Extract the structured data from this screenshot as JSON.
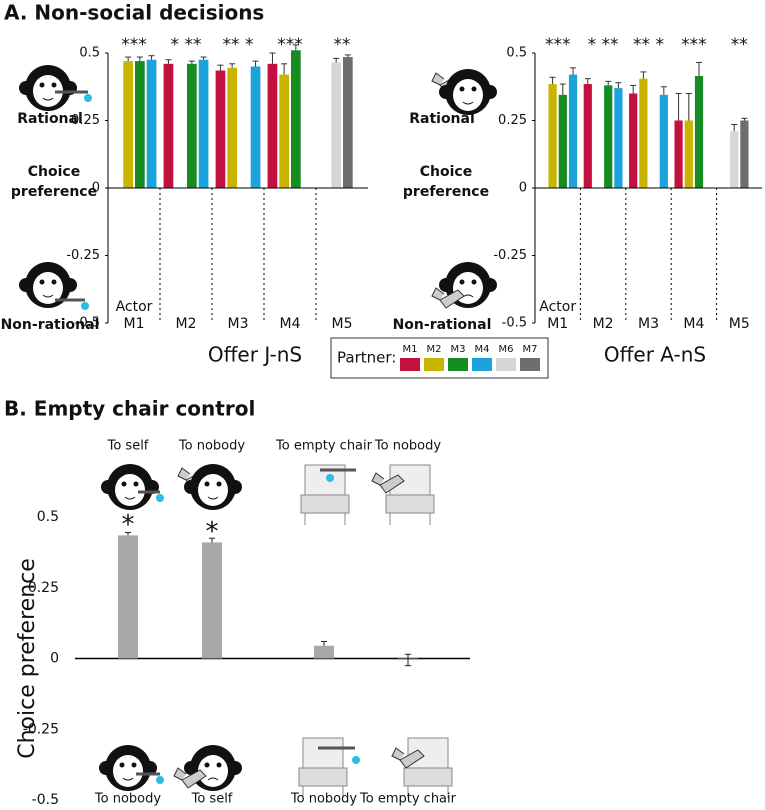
{
  "chart_data": [
    {
      "type": "grouped-bar",
      "panel_title": "A. Non-social decisions",
      "y_label": "Choice preference",
      "top_icon_label": "Rational",
      "bottom_icon_label": "Non-rational",
      "x_label": "Offer J-nS",
      "actor_label": "Actor",
      "categories": [
        "M1",
        "M2",
        "M3",
        "M4",
        "M5"
      ],
      "annotations": [
        "***",
        "* **",
        "** *",
        "***",
        "**"
      ],
      "legend_title": "Partner:",
      "ylim": [
        -0.5,
        0.5
      ],
      "yticks": [
        -0.5,
        -0.25,
        0,
        0.25,
        0.5
      ],
      "series": [
        {
          "name": "M1",
          "color": "#c2113f",
          "values": [
            null,
            0.46,
            0.435,
            0.46,
            null
          ],
          "errors": [
            null,
            0.015,
            0.02,
            0.04,
            null
          ]
        },
        {
          "name": "M2",
          "color": "#c9b400",
          "values": [
            0.47,
            null,
            0.445,
            0.42,
            null
          ],
          "errors": [
            0.015,
            null,
            0.015,
            0.04,
            null
          ]
        },
        {
          "name": "M3",
          "color": "#168c22",
          "values": [
            0.47,
            0.46,
            null,
            0.51,
            null
          ],
          "errors": [
            0.015,
            0.01,
            null,
            0.02,
            null
          ]
        },
        {
          "name": "M4",
          "color": "#1ba3dc",
          "values": [
            0.475,
            0.475,
            0.45,
            null,
            null
          ],
          "errors": [
            0.015,
            0.01,
            0.02,
            null,
            null
          ]
        },
        {
          "name": "M6",
          "color": "#d6d6d6",
          "values": [
            null,
            null,
            null,
            null,
            0.465
          ],
          "errors": [
            null,
            null,
            null,
            null,
            0.015
          ]
        },
        {
          "name": "M7",
          "color": "#6e6e6e",
          "values": [
            null,
            null,
            null,
            null,
            0.485
          ],
          "errors": [
            null,
            null,
            null,
            null,
            0.008
          ]
        }
      ]
    },
    {
      "type": "grouped-bar",
      "y_label": "Choice preference",
      "top_icon_label": "Rational",
      "bottom_icon_label": "Non-rational",
      "x_label": "Offer A-nS",
      "actor_label": "Actor",
      "categories": [
        "M1",
        "M2",
        "M3",
        "M4",
        "M5"
      ],
      "annotations": [
        "***",
        "* **",
        "** *",
        "***",
        "**"
      ],
      "ylim": [
        -0.5,
        0.5
      ],
      "yticks": [
        -0.5,
        -0.25,
        0,
        0.25,
        0.5
      ],
      "series": [
        {
          "name": "M1",
          "color": "#c2113f",
          "values": [
            null,
            0.385,
            0.35,
            0.25,
            null
          ],
          "errors": [
            null,
            0.02,
            0.03,
            0.1,
            null
          ]
        },
        {
          "name": "M2",
          "color": "#c9b400",
          "values": [
            0.385,
            null,
            0.405,
            0.25,
            null
          ],
          "errors": [
            0.025,
            null,
            0.025,
            0.1,
            null
          ]
        },
        {
          "name": "M3",
          "color": "#168c22",
          "values": [
            0.345,
            0.38,
            null,
            0.415,
            null
          ],
          "errors": [
            0.04,
            0.015,
            null,
            0.05,
            null
          ]
        },
        {
          "name": "M4",
          "color": "#1ba3dc",
          "values": [
            0.42,
            0.37,
            0.345,
            null,
            null
          ],
          "errors": [
            0.025,
            0.02,
            0.03,
            null,
            null
          ]
        },
        {
          "name": "M6",
          "color": "#d6d6d6",
          "values": [
            null,
            null,
            null,
            null,
            0.21
          ],
          "errors": [
            null,
            null,
            null,
            null,
            0.025
          ]
        },
        {
          "name": "M7",
          "color": "#6e6e6e",
          "values": [
            null,
            null,
            null,
            null,
            0.25
          ],
          "errors": [
            null,
            null,
            null,
            null,
            0.008
          ]
        }
      ]
    },
    {
      "type": "bar",
      "title": "B. Empty chair control",
      "y_label": "Choice preference",
      "categories": [
        "To self",
        "To nobody",
        "To empty chair",
        "To nobody"
      ],
      "bottom_labels": [
        "To nobody",
        "To self",
        "To nobody",
        "To empty chair"
      ],
      "values": [
        0.435,
        0.41,
        0.045,
        -0.005
      ],
      "errors": [
        0.01,
        0.015,
        0.015,
        0.02
      ],
      "annotations": [
        "*",
        "*",
        null,
        null
      ],
      "color": "#a8a8a8",
      "ylim": [
        -0.5,
        0.5
      ],
      "yticks": [
        -0.5,
        -0.25,
        0,
        0.25,
        0.5
      ]
    }
  ]
}
